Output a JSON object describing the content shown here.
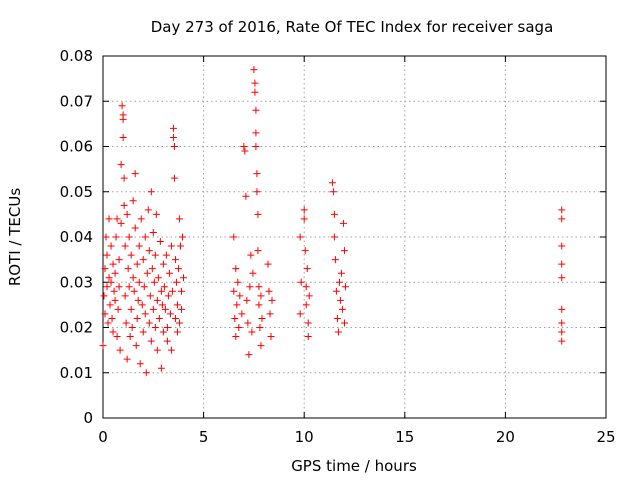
{
  "chart_data": {
    "type": "scatter",
    "title": "Day 273 of 2016, Rate Of TEC Index for receiver saga",
    "xlabel": "GPS time / hours",
    "ylabel": "ROTI / TECUs",
    "xlim": [
      0,
      25
    ],
    "ylim": [
      0,
      0.08
    ],
    "xticks": [
      "0",
      "5",
      "10",
      "15",
      "20",
      "25"
    ],
    "yticks": [
      "0",
      "0.01",
      "0.02",
      "0.03",
      "0.04",
      "0.05",
      "0.06",
      "0.07",
      "0.08"
    ],
    "grid": true,
    "marker": "+",
    "color": "#ff0000",
    "series": [
      {
        "name": "ROTI",
        "points": [
          [
            0.0,
            0.016
          ],
          [
            0.05,
            0.027
          ],
          [
            0.1,
            0.023
          ],
          [
            0.1,
            0.033
          ],
          [
            0.15,
            0.04
          ],
          [
            0.2,
            0.036
          ],
          [
            0.2,
            0.029
          ],
          [
            0.25,
            0.021
          ],
          [
            0.3,
            0.044
          ],
          [
            0.3,
            0.031
          ],
          [
            0.35,
            0.025
          ],
          [
            0.4,
            0.03
          ],
          [
            0.4,
            0.038
          ],
          [
            0.45,
            0.022
          ],
          [
            0.5,
            0.034
          ],
          [
            0.5,
            0.019
          ],
          [
            0.55,
            0.028
          ],
          [
            0.6,
            0.026
          ],
          [
            0.6,
            0.032
          ],
          [
            0.65,
            0.04
          ],
          [
            0.7,
            0.018
          ],
          [
            0.7,
            0.044
          ],
          [
            0.75,
            0.024
          ],
          [
            0.8,
            0.035
          ],
          [
            0.8,
            0.029
          ],
          [
            0.85,
            0.015
          ],
          [
            0.9,
            0.043
          ],
          [
            0.9,
            0.056
          ],
          [
            0.95,
            0.069
          ],
          [
            1.0,
            0.066
          ],
          [
            1.0,
            0.067
          ],
          [
            1.0,
            0.062
          ],
          [
            1.05,
            0.053
          ],
          [
            1.05,
            0.047
          ],
          [
            1.1,
            0.038
          ],
          [
            1.1,
            0.027
          ],
          [
            1.15,
            0.021
          ],
          [
            1.2,
            0.045
          ],
          [
            1.2,
            0.013
          ],
          [
            1.25,
            0.033
          ],
          [
            1.3,
            0.029
          ],
          [
            1.3,
            0.04
          ],
          [
            1.35,
            0.018
          ],
          [
            1.4,
            0.036
          ],
          [
            1.4,
            0.024
          ],
          [
            1.45,
            0.02
          ],
          [
            1.5,
            0.048
          ],
          [
            1.5,
            0.031
          ],
          [
            1.55,
            0.028
          ],
          [
            1.6,
            0.054
          ],
          [
            1.6,
            0.042
          ],
          [
            1.65,
            0.016
          ],
          [
            1.7,
            0.034
          ],
          [
            1.7,
            0.022
          ],
          [
            1.75,
            0.026
          ],
          [
            1.8,
            0.038
          ],
          [
            1.8,
            0.03
          ],
          [
            1.85,
            0.012
          ],
          [
            1.9,
            0.044
          ],
          [
            1.95,
            0.025
          ],
          [
            2.0,
            0.035
          ],
          [
            2.0,
            0.019
          ],
          [
            2.05,
            0.029
          ],
          [
            2.1,
            0.04
          ],
          [
            2.1,
            0.023
          ],
          [
            2.15,
            0.01
          ],
          [
            2.2,
            0.032
          ],
          [
            2.25,
            0.046
          ],
          [
            2.3,
            0.037
          ],
          [
            2.3,
            0.021
          ],
          [
            2.35,
            0.027
          ],
          [
            2.4,
            0.05
          ],
          [
            2.4,
            0.017
          ],
          [
            2.45,
            0.033
          ],
          [
            2.5,
            0.024
          ],
          [
            2.5,
            0.041
          ],
          [
            2.55,
            0.03
          ],
          [
            2.6,
            0.02
          ],
          [
            2.6,
            0.036
          ],
          [
            2.65,
            0.045
          ],
          [
            2.7,
            0.026
          ],
          [
            2.7,
            0.015
          ],
          [
            2.75,
            0.031
          ],
          [
            2.8,
            0.022
          ],
          [
            2.85,
            0.039
          ],
          [
            2.9,
            0.028
          ],
          [
            2.9,
            0.011
          ],
          [
            2.95,
            0.025
          ],
          [
            3.0,
            0.034
          ],
          [
            3.0,
            0.019
          ],
          [
            3.05,
            0.029
          ],
          [
            3.1,
            0.024
          ],
          [
            3.15,
            0.036
          ],
          [
            3.2,
            0.02
          ],
          [
            3.2,
            0.017
          ],
          [
            3.25,
            0.027
          ],
          [
            3.3,
            0.032
          ],
          [
            3.35,
            0.023
          ],
          [
            3.4,
            0.038
          ],
          [
            3.4,
            0.015
          ],
          [
            3.45,
            0.028
          ],
          [
            3.5,
            0.064
          ],
          [
            3.5,
            0.062
          ],
          [
            3.55,
            0.06
          ],
          [
            3.55,
            0.053
          ],
          [
            3.6,
            0.035
          ],
          [
            3.6,
            0.022
          ],
          [
            3.65,
            0.03
          ],
          [
            3.7,
            0.019
          ],
          [
            3.7,
            0.025
          ],
          [
            3.75,
            0.033
          ],
          [
            3.8,
            0.044
          ],
          [
            3.8,
            0.021
          ],
          [
            3.85,
            0.038
          ],
          [
            3.9,
            0.028
          ],
          [
            3.9,
            0.024
          ],
          [
            3.95,
            0.04
          ],
          [
            4.0,
            0.031
          ],
          [
            6.5,
            0.04
          ],
          [
            6.5,
            0.028
          ],
          [
            6.55,
            0.022
          ],
          [
            6.6,
            0.018
          ],
          [
            6.6,
            0.033
          ],
          [
            6.65,
            0.025
          ],
          [
            6.7,
            0.03
          ],
          [
            6.75,
            0.02
          ],
          [
            6.8,
            0.027
          ],
          [
            6.9,
            0.023
          ],
          [
            7.0,
            0.06
          ],
          [
            7.05,
            0.059
          ],
          [
            7.1,
            0.049
          ],
          [
            7.15,
            0.026
          ],
          [
            7.2,
            0.021
          ],
          [
            7.25,
            0.014
          ],
          [
            7.3,
            0.029
          ],
          [
            7.35,
            0.036
          ],
          [
            7.4,
            0.019
          ],
          [
            7.45,
            0.032
          ],
          [
            7.5,
            0.077
          ],
          [
            7.55,
            0.074
          ],
          [
            7.55,
            0.072
          ],
          [
            7.6,
            0.068
          ],
          [
            7.6,
            0.063
          ],
          [
            7.6,
            0.06
          ],
          [
            7.65,
            0.054
          ],
          [
            7.65,
            0.05
          ],
          [
            7.7,
            0.045
          ],
          [
            7.7,
            0.037
          ],
          [
            7.75,
            0.029
          ],
          [
            7.75,
            0.025
          ],
          [
            7.8,
            0.02
          ],
          [
            7.85,
            0.016
          ],
          [
            7.85,
            0.027
          ],
          [
            7.9,
            0.022
          ],
          [
            8.2,
            0.034
          ],
          [
            8.25,
            0.028
          ],
          [
            8.3,
            0.023
          ],
          [
            8.35,
            0.018
          ],
          [
            8.4,
            0.026
          ],
          [
            9.8,
            0.04
          ],
          [
            9.8,
            0.023
          ],
          [
            9.85,
            0.03
          ],
          [
            10.0,
            0.046
          ],
          [
            10.0,
            0.044
          ],
          [
            10.05,
            0.037
          ],
          [
            10.1,
            0.029
          ],
          [
            10.1,
            0.025
          ],
          [
            10.15,
            0.033
          ],
          [
            10.2,
            0.021
          ],
          [
            10.2,
            0.018
          ],
          [
            10.25,
            0.027
          ],
          [
            11.4,
            0.052
          ],
          [
            11.45,
            0.05
          ],
          [
            11.5,
            0.045
          ],
          [
            11.5,
            0.04
          ],
          [
            11.55,
            0.035
          ],
          [
            11.6,
            0.028
          ],
          [
            11.65,
            0.022
          ],
          [
            11.7,
            0.019
          ],
          [
            11.75,
            0.03
          ],
          [
            11.8,
            0.026
          ],
          [
            11.85,
            0.032
          ],
          [
            11.9,
            0.024
          ],
          [
            11.95,
            0.043
          ],
          [
            12.0,
            0.037
          ],
          [
            12.0,
            0.021
          ],
          [
            12.05,
            0.029
          ],
          [
            22.8,
            0.046
          ],
          [
            22.8,
            0.044
          ],
          [
            22.8,
            0.038
          ],
          [
            22.8,
            0.034
          ],
          [
            22.8,
            0.031
          ],
          [
            22.8,
            0.024
          ],
          [
            22.8,
            0.021
          ],
          [
            22.8,
            0.019
          ],
          [
            22.8,
            0.017
          ]
        ]
      }
    ]
  }
}
